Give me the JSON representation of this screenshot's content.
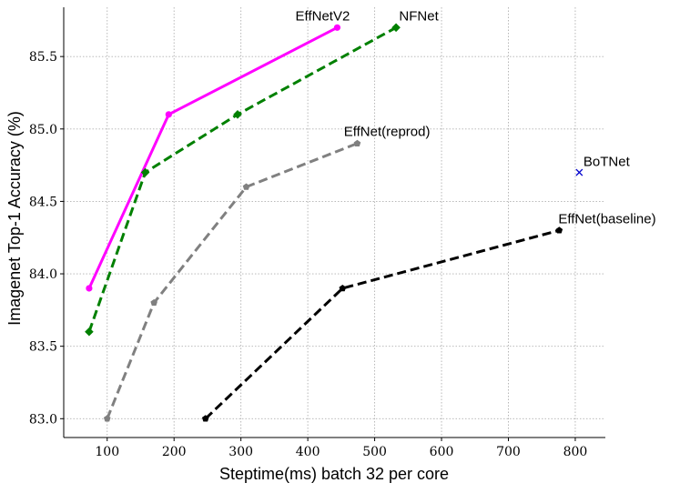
{
  "chart_data": {
    "type": "line",
    "title": "",
    "xlabel": "Steptime(ms) batch 32 per core",
    "ylabel": "Imagenet Top-1 Accuracy (%)",
    "xlim": [
      35,
      845
    ],
    "ylim": [
      82.87,
      85.84
    ],
    "xticks": [
      100,
      200,
      300,
      400,
      500,
      600,
      700,
      800
    ],
    "yticks": [
      83.0,
      83.5,
      84.0,
      84.5,
      85.0,
      85.5
    ],
    "ytick_labels": [
      "83.0",
      "83.5",
      "84.0",
      "84.5",
      "85.0",
      "85.5"
    ],
    "grid": true,
    "series": [
      {
        "name": "EffNetV2",
        "label": "EffNetV2",
        "color": "#ff00ff",
        "dash": "solid",
        "marker": "circle",
        "x": [
          73,
          192,
          444
        ],
        "y": [
          83.9,
          85.1,
          85.7
        ]
      },
      {
        "name": "NFNet",
        "label": "NFNet",
        "color": "#008000",
        "dash": "dashed",
        "marker": "diamond",
        "x": [
          73,
          157,
          295,
          532
        ],
        "y": [
          83.6,
          84.7,
          85.1,
          85.7
        ]
      },
      {
        "name": "EffNet(reprod)",
        "label": "EffNet(reprod)",
        "color": "#808080",
        "dash": "dashed",
        "marker": "pentagon",
        "x": [
          100,
          170,
          308,
          474
        ],
        "y": [
          83.0,
          83.8,
          84.6,
          84.9
        ]
      },
      {
        "name": "EffNet(baseline)",
        "label": "EffNet(baseline)",
        "color": "#000000",
        "dash": "dashed",
        "marker": "pentagon",
        "x": [
          247,
          452,
          776
        ],
        "y": [
          83.0,
          83.9,
          84.3
        ]
      },
      {
        "name": "BoTNet",
        "label": "BoTNet",
        "color": "#0000cc",
        "dash": "none",
        "marker": "x",
        "x": [
          806
        ],
        "y": [
          84.7
        ]
      }
    ]
  }
}
